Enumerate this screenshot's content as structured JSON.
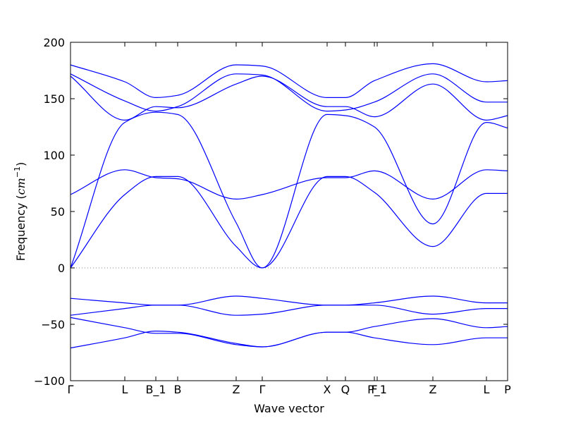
{
  "chart_data": {
    "type": "line",
    "xlabel": "Wave vector",
    "ylabel": "Frequency (cm⁻¹)",
    "ylabel_main": "Frequency ",
    "ylabel_unit": "cm",
    "ylabel_exp": "−1",
    "ylim": [
      -100,
      200
    ],
    "yticks": [
      {
        "value": -100,
        "label": "−100"
      },
      {
        "value": -50,
        "label": "−50"
      },
      {
        "value": 0,
        "label": "0"
      },
      {
        "value": 50,
        "label": "50"
      },
      {
        "value": 100,
        "label": "100"
      },
      {
        "value": 150,
        "label": "150"
      },
      {
        "value": 200,
        "label": "200"
      }
    ],
    "xlim": [
      0,
      1
    ],
    "xticks": [
      {
        "value": 0.0,
        "label": "Γ"
      },
      {
        "value": 0.1242,
        "label": "L"
      },
      {
        "value": 0.1952,
        "label": "B_1"
      },
      {
        "value": 0.2452,
        "label": "B"
      },
      {
        "value": 0.379,
        "label": "Z"
      },
      {
        "value": 0.4387,
        "label": "Γ"
      },
      {
        "value": 0.5871,
        "label": "X"
      },
      {
        "value": 0.629,
        "label": "Q"
      },
      {
        "value": 0.6952,
        "label": "F"
      },
      {
        "value": 0.7016,
        "label": "P_1"
      },
      {
        "value": 0.829,
        "label": "Z"
      },
      {
        "value": 0.9516,
        "label": "L"
      },
      {
        "value": 1.0,
        "label": "P"
      }
    ],
    "zero_line": {
      "value": 0,
      "style": "dotted",
      "color": "#888888"
    },
    "line_color": "#0000ff",
    "x": [
      0.0,
      0.1242,
      0.1952,
      0.2452,
      0.379,
      0.4387,
      0.5871,
      0.629,
      0.6952,
      0.829,
      0.9516,
      1.0
    ],
    "series": [
      {
        "values": [
          -71,
          -62,
          -56,
          -57,
          -67,
          -70,
          -57,
          -57,
          -52,
          -45,
          -53,
          -52
        ]
      },
      {
        "values": [
          -44,
          -53,
          -58,
          -58,
          -68,
          -70,
          -57,
          -57,
          -62,
          -68,
          -62,
          -62
        ]
      },
      {
        "values": [
          -42,
          -36,
          -33,
          -33,
          -42,
          -41,
          -33,
          -33,
          -33,
          -41,
          -36,
          -36
        ]
      },
      {
        "values": [
          -27,
          -31,
          -33,
          -33,
          -25,
          -27,
          -33,
          -33,
          -31,
          -25,
          -31,
          -31
        ]
      },
      {
        "values": [
          0,
          65,
          81,
          81,
          19,
          0,
          81,
          81,
          67,
          19,
          66,
          66
        ]
      },
      {
        "values": [
          0,
          129,
          138,
          136,
          40,
          0,
          136,
          135,
          125,
          39,
          129,
          124
        ]
      },
      {
        "values": [
          65,
          87,
          80,
          79,
          61,
          65,
          80,
          80,
          86,
          61,
          87,
          86
        ]
      },
      {
        "values": [
          170,
          131,
          143,
          142,
          163,
          170,
          143,
          143,
          134,
          163,
          131,
          135
        ]
      },
      {
        "values": [
          172,
          148,
          139,
          143,
          172,
          171,
          139,
          140,
          147,
          172,
          147,
          147
        ]
      },
      {
        "values": [
          180,
          165,
          151,
          153,
          180,
          179,
          151,
          151,
          166,
          181,
          165,
          166
        ]
      }
    ]
  }
}
